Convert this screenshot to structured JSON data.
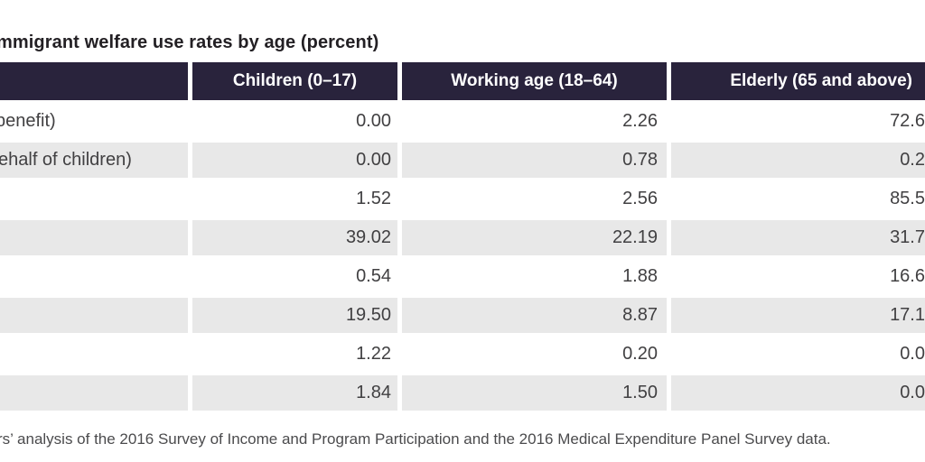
{
  "title": "mmigrant welfare use rates by age (percent)",
  "table": {
    "header": [
      "",
      "Children (0–17)",
      "Working age (18–64)",
      "Elderly (65 and above)"
    ],
    "rows": [
      [
        "benefit)",
        "0.00",
        "2.26",
        "72.6"
      ],
      [
        "ehalf of children)",
        "0.00",
        "0.78",
        "0.2"
      ],
      [
        "",
        "1.52",
        "2.56",
        "85.5"
      ],
      [
        "",
        "39.02",
        "22.19",
        "31.7"
      ],
      [
        "",
        "0.54",
        "1.88",
        "16.6"
      ],
      [
        "",
        "19.50",
        "8.87",
        "17.1"
      ],
      [
        "",
        "1.22",
        "0.20",
        "0.0"
      ],
      [
        "",
        "1.84",
        "1.50",
        "0.0"
      ]
    ]
  },
  "footer": "rs’ analysis of the 2016 Survey of Income and Program Participation and the 2016 Medical Expenditure Panel Survey data.",
  "colors": {
    "header_bg": "#29233c",
    "header_text": "#ffffff",
    "row_alt_bg": "#e8e8e8",
    "title_text": "#232024",
    "body_text": "#414042",
    "footer_text": "#4b4b4d"
  },
  "chart_data": {
    "type": "table",
    "title": "mmigrant welfare use rates by age (percent)",
    "columns": [
      "Children (0–17)",
      "Working age (18–64)",
      "Elderly (65 and above)"
    ],
    "row_labels": [
      "benefit)",
      "ehalf of children)",
      "",
      "",
      "",
      "",
      "",
      ""
    ],
    "values": [
      [
        0.0,
        2.26,
        72.6
      ],
      [
        0.0,
        0.78,
        0.2
      ],
      [
        1.52,
        2.56,
        85.5
      ],
      [
        39.02,
        22.19,
        31.7
      ],
      [
        0.54,
        1.88,
        16.6
      ],
      [
        19.5,
        8.87,
        17.1
      ],
      [
        1.22,
        0.2,
        0.0
      ],
      [
        1.84,
        1.5,
        0.0
      ]
    ],
    "note": "values in right column are clipped at image edge"
  }
}
